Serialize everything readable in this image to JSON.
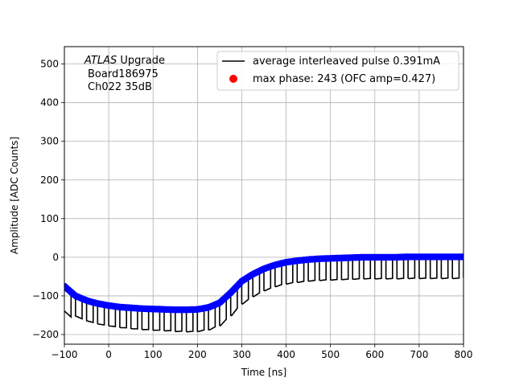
{
  "chart_data": {
    "type": "line",
    "xlabel": "Time [ns]",
    "ylabel": "Amplitude [ADC Counts]",
    "xlim": [
      -100,
      800
    ],
    "ylim": [
      -225,
      545
    ],
    "xticks": [
      -100,
      0,
      100,
      200,
      300,
      400,
      500,
      600,
      700,
      800
    ],
    "yticks": [
      -200,
      -100,
      0,
      100,
      200,
      300,
      400,
      500
    ],
    "grid": true,
    "legend_position": "top-right",
    "annotation": {
      "line1_italic": "ATLAS",
      "line1_rest": " Upgrade",
      "line2": "Board186975",
      "line3": "Ch022 35dB"
    },
    "series": [
      {
        "name": "average interleaved pulse 0.391mA",
        "style": "black line",
        "color": "#000000",
        "x": [
          -100,
          -75,
          -50,
          -25,
          0,
          25,
          50,
          75,
          100,
          125,
          150,
          175,
          200,
          225,
          250,
          275,
          300,
          325,
          350,
          375,
          400,
          425,
          450,
          475,
          500,
          525,
          550,
          575,
          600,
          625,
          650,
          675,
          700,
          725,
          750,
          775,
          800
        ],
        "y": [
          -75,
          -100,
          -112,
          -120,
          -125,
          -129,
          -131,
          -133,
          -134,
          -135,
          -136,
          -136,
          -135,
          -130,
          -118,
          -92,
          -62,
          -44,
          -30,
          -20,
          -13,
          -9,
          -6,
          -4,
          -3,
          -2,
          -1,
          0,
          0,
          0,
          0,
          1,
          1,
          1,
          1,
          1,
          1
        ],
        "dip_depth": [
          -70,
          -52,
          -52,
          -52,
          -52,
          -52,
          -53,
          -53,
          -54,
          -54,
          -55,
          -56,
          -56,
          -57,
          -58,
          -58,
          -58,
          -57,
          -56,
          -55,
          -55,
          -55,
          -55,
          -55,
          -55,
          -55,
          -55,
          -55,
          -55,
          -55,
          -55,
          -55,
          -55,
          -55,
          -55,
          -55,
          -55
        ],
        "dip_period": 25
      },
      {
        "name": "max phase: 243 (OFC amp=0.427)",
        "style": "blue dots",
        "color": "#0000ff",
        "legend_marker_color": "#ff0000",
        "x": [
          -100,
          -75,
          -50,
          -25,
          0,
          25,
          50,
          75,
          100,
          125,
          150,
          175,
          200,
          225,
          250,
          275,
          300,
          325,
          350,
          375,
          400,
          425,
          450,
          475,
          500,
          525,
          550,
          575,
          600,
          625,
          650,
          675,
          700,
          725,
          750,
          775,
          800
        ],
        "y": [
          -75,
          -100,
          -112,
          -120,
          -125,
          -129,
          -131,
          -133,
          -134,
          -135,
          -136,
          -136,
          -135,
          -130,
          -118,
          -92,
          -62,
          -44,
          -30,
          -20,
          -13,
          -9,
          -6,
          -4,
          -3,
          -2,
          -1,
          0,
          0,
          0,
          0,
          1,
          1,
          1,
          1,
          1,
          1
        ]
      }
    ]
  },
  "colors": {
    "axes": "#000000",
    "grid": "#b0b0b0",
    "line": "#000000",
    "dots": "#0000ff",
    "legend_dot": "#ff0000"
  }
}
